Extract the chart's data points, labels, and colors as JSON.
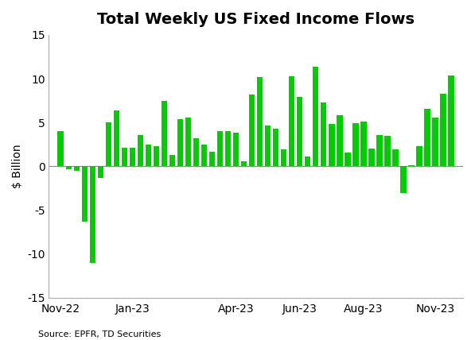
{
  "title": "Total Weekly US Fixed Income Flows",
  "ylabel": "$ Billion",
  "source": "Source: EPFR, TD Securities",
  "bar_color": "#00cc00",
  "background_color": "#ffffff",
  "ylim": [
    -15,
    15
  ],
  "yticks": [
    -15,
    -10,
    -5,
    0,
    5,
    10,
    15
  ],
  "values": [
    4.0,
    -0.3,
    -0.5,
    -6.3,
    -11.0,
    -1.3,
    5.0,
    6.4,
    2.1,
    2.1,
    3.6,
    2.5,
    2.3,
    7.5,
    1.3,
    5.4,
    5.6,
    3.2,
    2.5,
    1.7,
    4.0,
    4.0,
    3.8,
    0.6,
    8.2,
    10.2,
    4.7,
    4.3,
    1.9,
    10.3,
    7.9,
    1.1,
    11.4,
    7.3,
    4.8,
    5.8,
    1.6,
    4.9,
    5.1,
    2.0,
    3.6,
    3.5,
    1.9,
    -3.0,
    0.1,
    2.3,
    6.6,
    5.6,
    8.3,
    10.4
  ],
  "tick_positions": [
    0,
    9,
    22,
    30,
    38,
    47
  ],
  "tick_labels": [
    "Nov-22",
    "Jan-23",
    "Apr-23",
    "Jun-23",
    "Aug-23",
    "Nov-23"
  ],
  "title_fontsize": 14,
  "axis_fontsize": 10,
  "source_fontsize": 8
}
